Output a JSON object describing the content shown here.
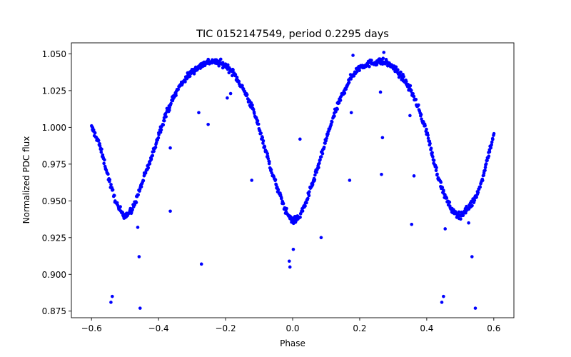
{
  "chart_data": {
    "type": "scatter",
    "title": "TIC 0152147549, period 0.2295 days",
    "xlabel": "Phase",
    "ylabel": "Normalized PDC flux",
    "xlim": [
      -0.66,
      0.66
    ],
    "ylim": [
      0.8705,
      1.0575
    ],
    "xticks": [
      -0.6,
      -0.4,
      -0.2,
      0.0,
      0.2,
      0.4,
      0.6
    ],
    "xtick_labels": [
      "−0.6",
      "−0.4",
      "−0.2",
      "0.0",
      "0.2",
      "0.4",
      "0.6"
    ],
    "yticks": [
      0.875,
      0.9,
      0.925,
      0.95,
      0.975,
      1.0,
      1.025,
      1.05
    ],
    "ytick_labels": [
      "0.875",
      "0.900",
      "0.925",
      "0.950",
      "0.975",
      "1.000",
      "1.025",
      "1.050"
    ],
    "marker_color": "#0000ff",
    "series": [
      {
        "name": "light curve",
        "trend": [
          [
            -0.6,
            1.0
          ],
          [
            -0.58,
            0.991
          ],
          [
            -0.56,
            0.975
          ],
          [
            -0.54,
            0.958
          ],
          [
            -0.52,
            0.945
          ],
          [
            -0.5,
            0.94
          ],
          [
            -0.48,
            0.943
          ],
          [
            -0.46,
            0.955
          ],
          [
            -0.44,
            0.968
          ],
          [
            -0.42,
            0.98
          ],
          [
            -0.4,
            0.995
          ],
          [
            -0.38,
            1.008
          ],
          [
            -0.36,
            1.018
          ],
          [
            -0.34,
            1.027
          ],
          [
            -0.32,
            1.033
          ],
          [
            -0.3,
            1.038
          ],
          [
            -0.28,
            1.041
          ],
          [
            -0.26,
            1.044
          ],
          [
            -0.24,
            1.045
          ],
          [
            -0.22,
            1.044
          ],
          [
            -0.2,
            1.042
          ],
          [
            -0.18,
            1.038
          ],
          [
            -0.16,
            1.031
          ],
          [
            -0.14,
            1.023
          ],
          [
            -0.12,
            1.013
          ],
          [
            -0.1,
            1.0
          ],
          [
            -0.08,
            0.984
          ],
          [
            -0.06,
            0.968
          ],
          [
            -0.04,
            0.955
          ],
          [
            -0.02,
            0.943
          ],
          [
            0.0,
            0.936
          ],
          [
            0.02,
            0.939
          ],
          [
            0.04,
            0.949
          ],
          [
            0.06,
            0.962
          ],
          [
            0.08,
            0.976
          ],
          [
            0.1,
            0.992
          ],
          [
            0.12,
            1.006
          ],
          [
            0.14,
            1.018
          ],
          [
            0.16,
            1.028
          ],
          [
            0.18,
            1.036
          ],
          [
            0.2,
            1.041
          ],
          [
            0.22,
            1.043
          ],
          [
            0.24,
            1.044
          ],
          [
            0.26,
            1.045
          ],
          [
            0.28,
            1.044
          ],
          [
            0.3,
            1.041
          ],
          [
            0.32,
            1.036
          ],
          [
            0.34,
            1.03
          ],
          [
            0.36,
            1.022
          ],
          [
            0.38,
            1.01
          ],
          [
            0.4,
            0.997
          ],
          [
            0.42,
            0.978
          ],
          [
            0.44,
            0.962
          ],
          [
            0.46,
            0.95
          ],
          [
            0.48,
            0.942
          ],
          [
            0.5,
            0.94
          ],
          [
            0.52,
            0.944
          ],
          [
            0.54,
            0.95
          ],
          [
            0.56,
            0.96
          ],
          [
            0.58,
            0.978
          ],
          [
            0.6,
            0.995
          ]
        ],
        "outliers": [
          [
            -0.542,
            0.881
          ],
          [
            -0.538,
            0.885
          ],
          [
            -0.455,
            0.877
          ],
          [
            -0.458,
            0.912
          ],
          [
            -0.462,
            0.932
          ],
          [
            -0.365,
            0.943
          ],
          [
            -0.365,
            0.986
          ],
          [
            -0.272,
            0.907
          ],
          [
            -0.252,
            1.002
          ],
          [
            -0.28,
            1.01
          ],
          [
            -0.195,
            1.02
          ],
          [
            -0.185,
            1.023
          ],
          [
            -0.122,
            0.964
          ],
          [
            -0.01,
            0.909
          ],
          [
            -0.008,
            0.905
          ],
          [
            0.002,
            0.917
          ],
          [
            0.022,
            0.992
          ],
          [
            0.085,
            0.925
          ],
          [
            0.17,
            0.964
          ],
          [
            0.175,
            1.01
          ],
          [
            0.18,
            1.049
          ],
          [
            0.265,
            0.968
          ],
          [
            0.268,
            0.993
          ],
          [
            0.262,
            1.024
          ],
          [
            0.272,
            1.051
          ],
          [
            0.355,
            0.934
          ],
          [
            0.362,
            0.967
          ],
          [
            0.35,
            1.008
          ],
          [
            0.445,
            0.881
          ],
          [
            0.45,
            0.885
          ],
          [
            0.455,
            0.931
          ],
          [
            0.535,
            0.912
          ],
          [
            0.545,
            0.877
          ],
          [
            0.525,
            0.935
          ]
        ]
      }
    ]
  }
}
